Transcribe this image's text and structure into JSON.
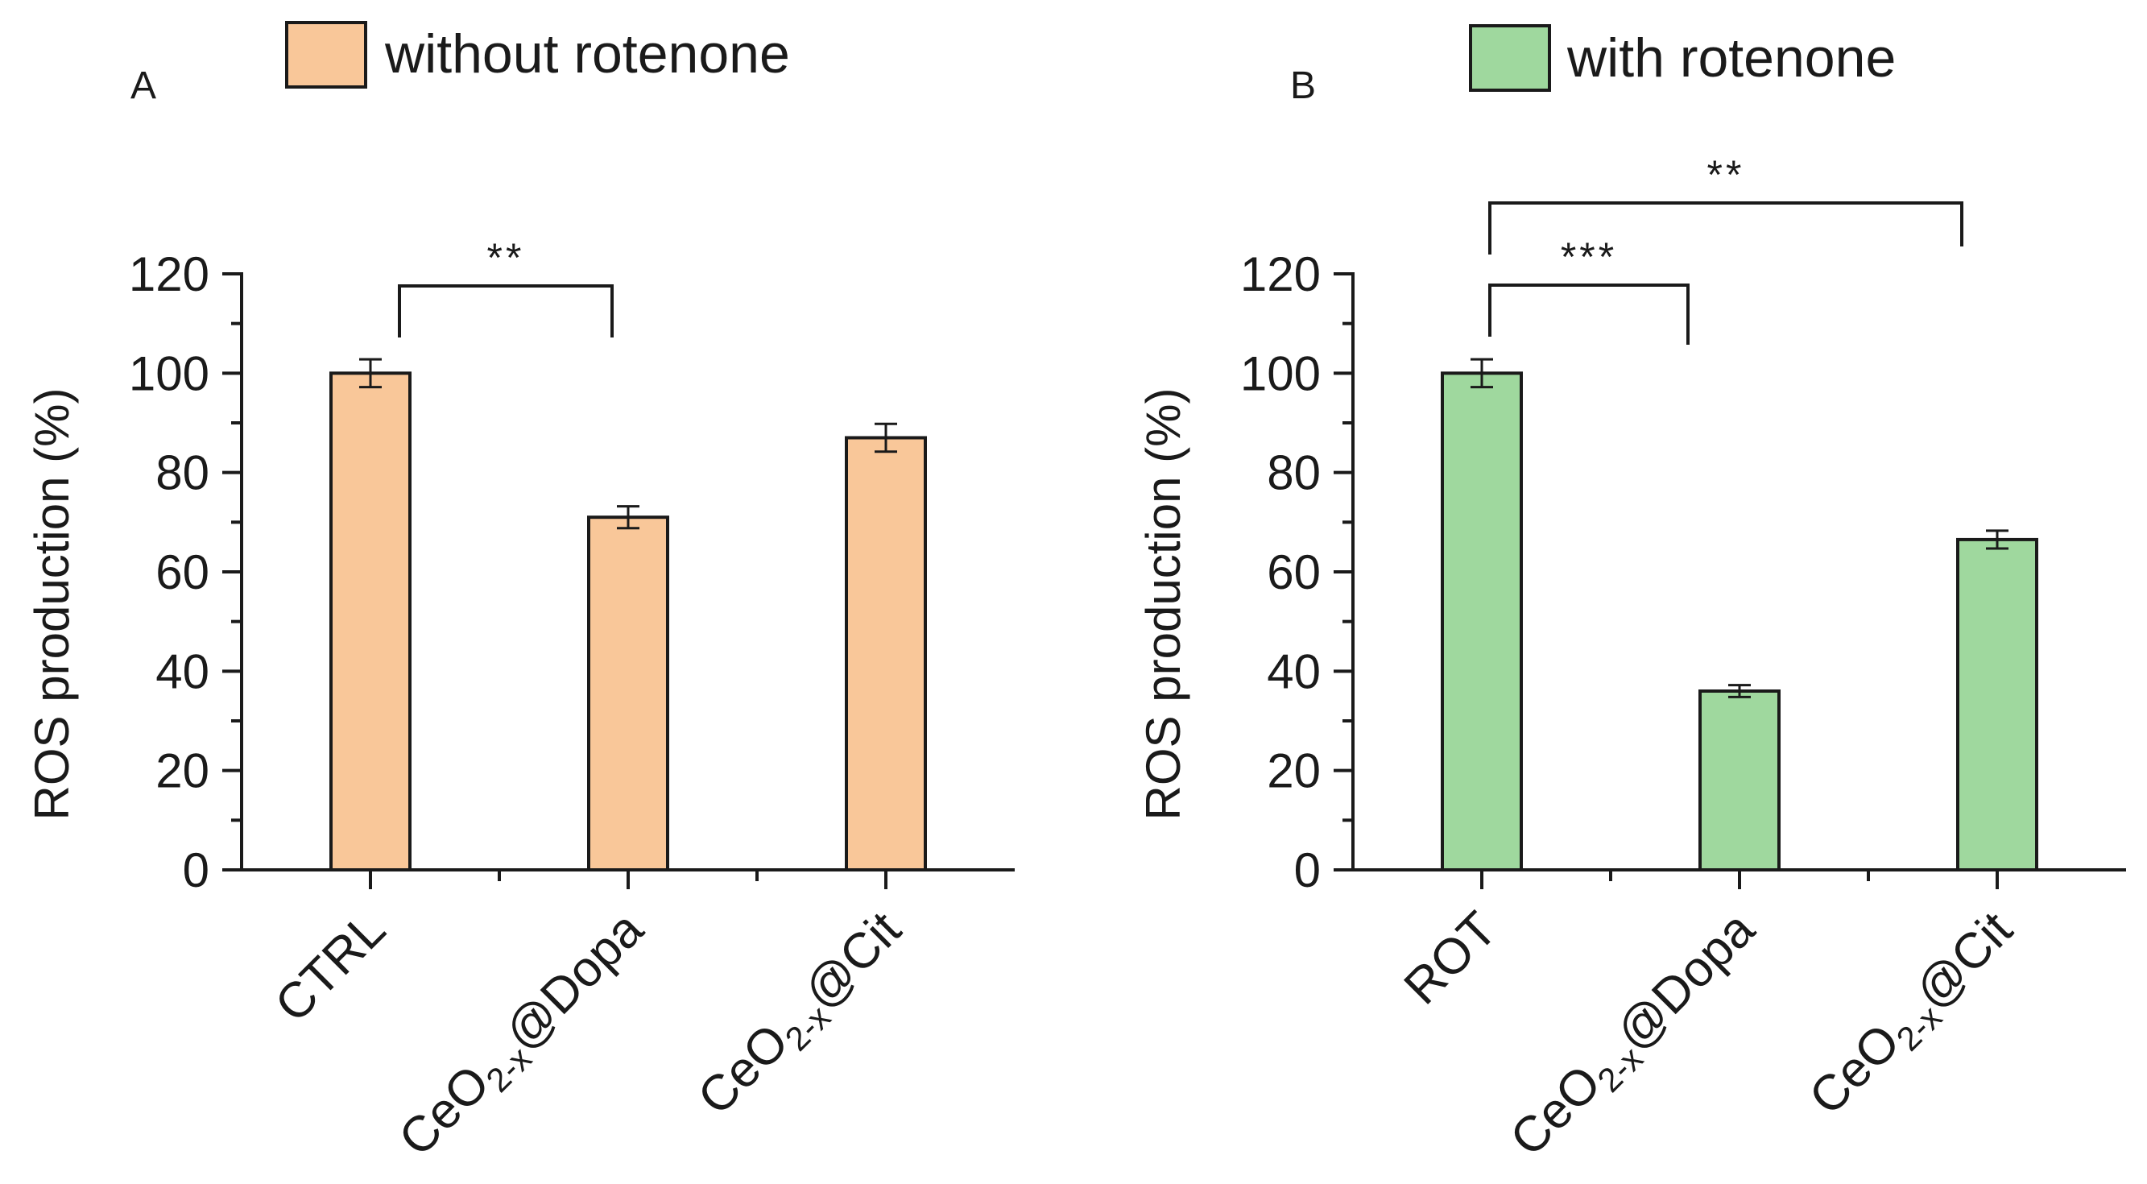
{
  "chart_data": [
    {
      "panel": "A",
      "type": "bar",
      "legend": "without rotenone",
      "legend_placement": "top",
      "ylabel": "ROS production (%)",
      "ylim": [
        0,
        120
      ],
      "yticks": [
        "0",
        "20",
        "40",
        "60",
        "80",
        "100",
        "120"
      ],
      "categories": [
        {
          "main": "CTRL",
          "sub": "",
          "suffix": ""
        },
        {
          "main": "CeO",
          "sub": "2-x",
          "suffix": "@Dopa"
        },
        {
          "main": "CeO",
          "sub": "2-x",
          "suffix": "@Cit"
        }
      ],
      "values": [
        100,
        71,
        87
      ],
      "errors": [
        2.8,
        2.2,
        2.8
      ],
      "color": "#f9c799",
      "significance": [
        {
          "from": 0,
          "to": 1,
          "label": "**"
        }
      ],
      "grid": false
    },
    {
      "panel": "B",
      "type": "bar",
      "legend": "with rotenone",
      "legend_placement": "top",
      "ylabel": "ROS production (%)",
      "ylim": [
        0,
        120
      ],
      "yticks": [
        "0",
        "20",
        "40",
        "60",
        "80",
        "100",
        "120"
      ],
      "categories": [
        {
          "main": "ROT",
          "sub": "",
          "suffix": ""
        },
        {
          "main": "CeO",
          "sub": "2-x",
          "suffix": "@Dopa"
        },
        {
          "main": "CeO",
          "sub": "2-x",
          "suffix": "@Cit"
        }
      ],
      "values": [
        100,
        36,
        66.5
      ],
      "errors": [
        2.8,
        1.2,
        1.8
      ],
      "color": "#9fd89e",
      "significance": [
        {
          "from": 0,
          "to": 1,
          "label": "***"
        },
        {
          "from": 0,
          "to": 2,
          "label": "**"
        }
      ],
      "grid": false
    }
  ]
}
